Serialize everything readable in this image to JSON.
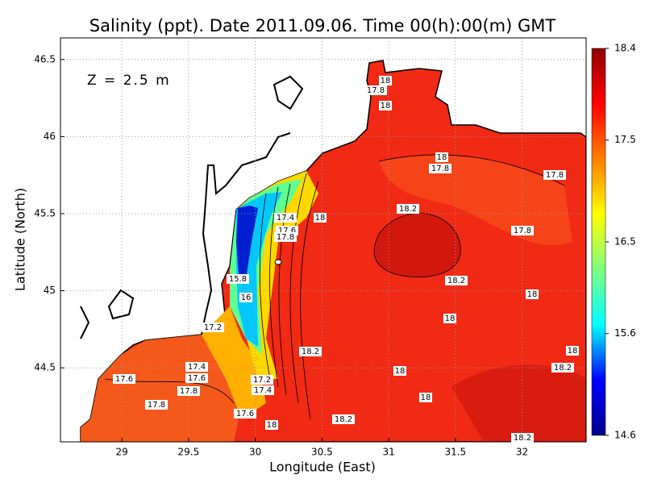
{
  "chart_data": {
    "type": "map",
    "title": "Salinity (ppt). Date 2011.09.06. Time 00(h):00(m) GMT",
    "annotation": "Z = 2.5 m",
    "x_label": "Longitude (East)",
    "y_label": "Latitude (North)",
    "xlim": [
      28.54,
      32.48
    ],
    "ylim": [
      44.02,
      46.64
    ],
    "xticks": [
      29,
      29.5,
      30,
      30.5,
      31,
      31.5,
      32
    ],
    "yticks": [
      44.5,
      45,
      45.5,
      46,
      46.5
    ],
    "grid": true,
    "colorbar": {
      "lim": [
        14.6,
        18.4
      ],
      "ticks": [
        14.6,
        15.6,
        16.5,
        17.5,
        18.4
      ],
      "colors": [
        "#00008f",
        "#0000ff",
        "#00ffff",
        "#7fff7f",
        "#ffff00",
        "#ff7f00",
        "#ff0000",
        "#8f0000"
      ]
    },
    "contour_labels": [
      "18",
      "17.8",
      "18",
      "18",
      "17.8",
      "17.8",
      "17.4",
      "18",
      "18.2",
      "17.6",
      "17.8",
      "17.8",
      "15.8",
      "18.2",
      "18",
      "16",
      "18",
      "17.2",
      "18.2",
      "18",
      "17.4",
      "18",
      "18.2",
      "17.6",
      "17.6",
      "17.2",
      "17.8",
      "17.4",
      "18",
      "17.8",
      "17.6",
      "18.2",
      "18",
      "18.2"
    ]
  }
}
